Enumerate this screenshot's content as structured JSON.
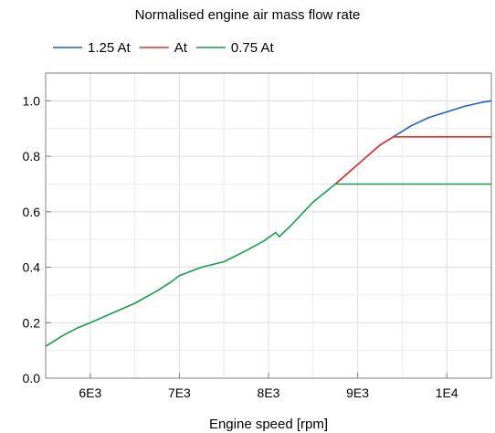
{
  "chart_data": {
    "type": "line",
    "title": "Normalised engine air mass flow rate",
    "xlabel": "Engine speed [rpm]",
    "ylabel": "",
    "xlim": [
      5500,
      10500
    ],
    "ylim": [
      0,
      1.1
    ],
    "grid": true,
    "legend_position": "top-left",
    "x_ticks": [
      {
        "value": 6000,
        "label": "6E3"
      },
      {
        "value": 7000,
        "label": "7E3"
      },
      {
        "value": 8000,
        "label": "8E3"
      },
      {
        "value": 9000,
        "label": "9E3"
      },
      {
        "value": 10000,
        "label": "1E4"
      }
    ],
    "y_ticks": [
      {
        "value": 0.0,
        "label": "0.0"
      },
      {
        "value": 0.2,
        "label": "0.2"
      },
      {
        "value": 0.4,
        "label": "0.4"
      },
      {
        "value": 0.6,
        "label": "0.6"
      },
      {
        "value": 0.8,
        "label": "0.8"
      },
      {
        "value": 1.0,
        "label": "1.0"
      }
    ],
    "series": [
      {
        "name": "1.25 At",
        "color": "#1f5fc8",
        "x": [
          8750,
          9000,
          9250,
          9400,
          9600,
          9800,
          10000,
          10200,
          10400,
          10500
        ],
        "y": [
          0.7,
          0.77,
          0.84,
          0.87,
          0.91,
          0.94,
          0.96,
          0.98,
          0.995,
          1.0
        ]
      },
      {
        "name": "At",
        "color": "#e0302a",
        "x": [
          8750,
          9000,
          9250,
          9400,
          9600,
          9800,
          10000,
          10200,
          10400,
          10500
        ],
        "y": [
          0.7,
          0.77,
          0.84,
          0.87,
          0.87,
          0.87,
          0.87,
          0.87,
          0.87,
          0.87
        ]
      },
      {
        "name": "0.75 At",
        "color": "#1a9a4a",
        "x": [
          5500,
          5700,
          5850,
          6000,
          6250,
          6500,
          6750,
          6900,
          7000,
          7250,
          7500,
          7750,
          7950,
          8080,
          8120,
          8250,
          8500,
          8750,
          9000,
          9500,
          10000,
          10500
        ],
        "y": [
          0.115,
          0.155,
          0.18,
          0.2,
          0.235,
          0.27,
          0.315,
          0.345,
          0.37,
          0.4,
          0.42,
          0.46,
          0.495,
          0.525,
          0.51,
          0.55,
          0.635,
          0.7,
          0.7,
          0.7,
          0.7,
          0.7
        ]
      }
    ]
  }
}
